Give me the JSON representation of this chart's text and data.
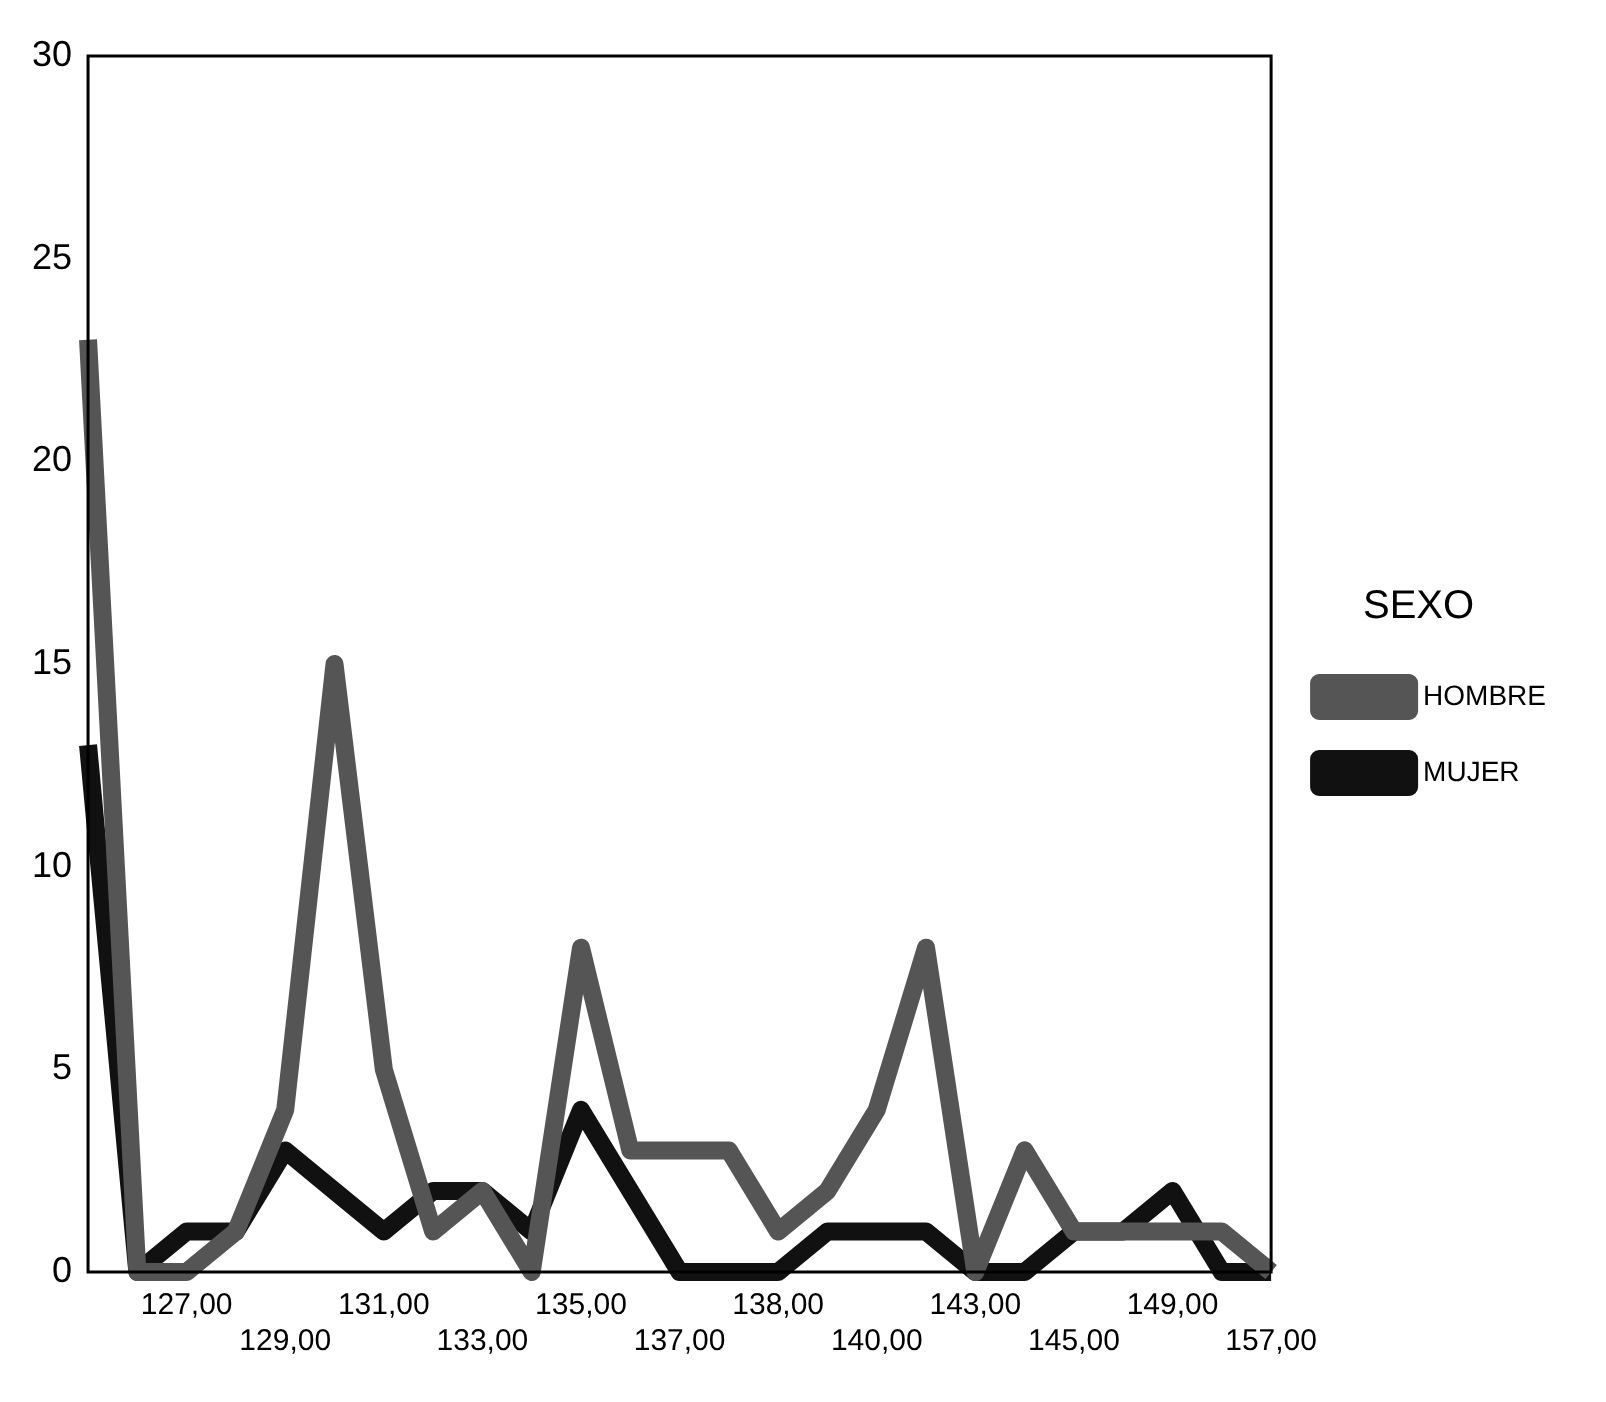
{
  "chart_data": {
    "type": "line",
    "legend_title": "SEXO",
    "legend": "right",
    "grid": false,
    "marker": "none",
    "line_style": "solid",
    "categories": [
      null,
      null,
      "127,00",
      null,
      "129,00",
      null,
      "131,00",
      null,
      "133,00",
      null,
      "135,00",
      null,
      "137,00",
      null,
      "138,00",
      null,
      "140,00",
      null,
      "143,00",
      null,
      "145,00",
      null,
      "149,00",
      null,
      "157,00"
    ],
    "ylim": [
      0,
      30
    ],
    "yticks": [
      0,
      5,
      10,
      15,
      20,
      25,
      30
    ],
    "series": [
      {
        "name": "HOMBRE",
        "color": "#555555",
        "values": [
          23,
          0,
          0,
          1,
          4,
          15,
          5,
          1,
          2,
          0,
          8,
          3,
          3,
          3,
          1,
          2,
          4,
          8,
          0,
          3,
          1,
          1,
          1,
          1,
          0
        ]
      },
      {
        "name": "MUJER",
        "color": "#111111",
        "values": [
          13,
          0,
          1,
          1,
          3,
          2,
          1,
          2,
          2,
          1,
          4,
          2,
          0,
          0,
          0,
          1,
          1,
          1,
          0,
          0,
          1,
          1,
          2,
          0,
          0
        ]
      }
    ]
  }
}
